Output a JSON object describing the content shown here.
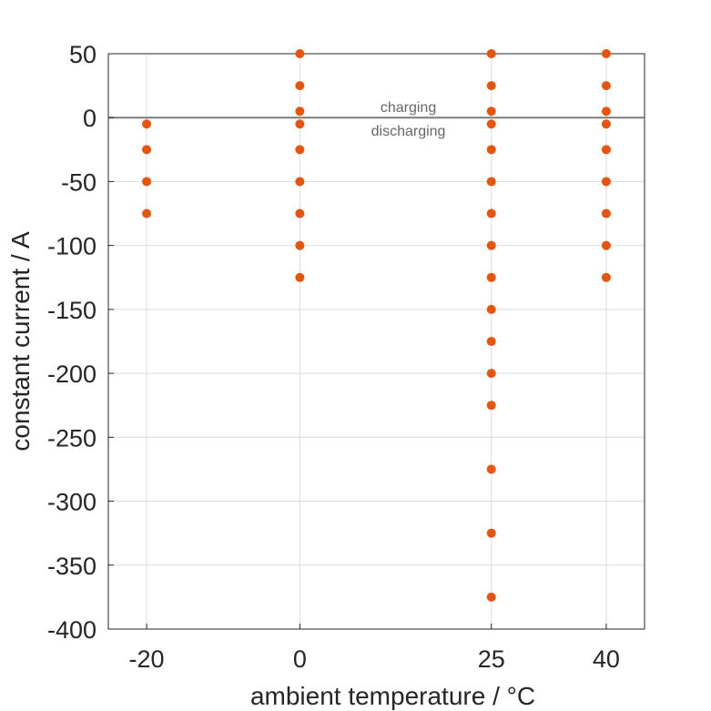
{
  "chart_data": {
    "type": "scatter",
    "xlabel": "ambient temperature / °C",
    "ylabel": "constant current / A",
    "x_ticks": [
      -20,
      0,
      25,
      40
    ],
    "y_ticks": [
      50,
      0,
      -50,
      -100,
      -150,
      -200,
      -250,
      -300,
      -350,
      -400
    ],
    "xlim": [
      -25,
      45
    ],
    "ylim": [
      -400,
      50
    ],
    "grid": true,
    "reference_line": {
      "y": 0,
      "label_above": "charging",
      "label_below": "discharging"
    },
    "marker_color": "#e8540e",
    "points": [
      {
        "x": -20,
        "y": -5
      },
      {
        "x": -20,
        "y": -25
      },
      {
        "x": -20,
        "y": -50
      },
      {
        "x": -20,
        "y": -75
      },
      {
        "x": 0,
        "y": 50
      },
      {
        "x": 0,
        "y": 25
      },
      {
        "x": 0,
        "y": 5
      },
      {
        "x": 0,
        "y": -5
      },
      {
        "x": 0,
        "y": -25
      },
      {
        "x": 0,
        "y": -50
      },
      {
        "x": 0,
        "y": -75
      },
      {
        "x": 0,
        "y": -100
      },
      {
        "x": 0,
        "y": -125
      },
      {
        "x": 25,
        "y": 50
      },
      {
        "x": 25,
        "y": 25
      },
      {
        "x": 25,
        "y": 5
      },
      {
        "x": 25,
        "y": -5
      },
      {
        "x": 25,
        "y": -25
      },
      {
        "x": 25,
        "y": -50
      },
      {
        "x": 25,
        "y": -75
      },
      {
        "x": 25,
        "y": -100
      },
      {
        "x": 25,
        "y": -125
      },
      {
        "x": 25,
        "y": -150
      },
      {
        "x": 25,
        "y": -175
      },
      {
        "x": 25,
        "y": -200
      },
      {
        "x": 25,
        "y": -225
      },
      {
        "x": 25,
        "y": -275
      },
      {
        "x": 25,
        "y": -325
      },
      {
        "x": 25,
        "y": -375
      },
      {
        "x": 40,
        "y": 50
      },
      {
        "x": 40,
        "y": 25
      },
      {
        "x": 40,
        "y": 5
      },
      {
        "x": 40,
        "y": -5
      },
      {
        "x": 40,
        "y": -25
      },
      {
        "x": 40,
        "y": -50
      },
      {
        "x": 40,
        "y": -75
      },
      {
        "x": 40,
        "y": -100
      },
      {
        "x": 40,
        "y": -125
      }
    ]
  }
}
